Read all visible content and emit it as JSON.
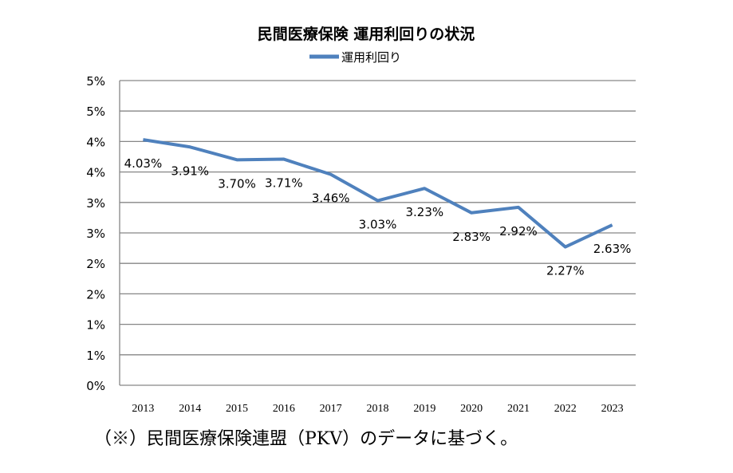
{
  "chart_data": {
    "type": "line",
    "title": "民間医療保険  運用利回りの状況",
    "categories": [
      "2013",
      "2014",
      "2015",
      "2016",
      "2017",
      "2018",
      "2019",
      "2020",
      "2021",
      "2022",
      "2023"
    ],
    "series": [
      {
        "name": "運用利回り",
        "values": [
          4.03,
          3.91,
          3.7,
          3.71,
          3.46,
          3.03,
          3.23,
          2.83,
          2.92,
          2.27,
          2.63
        ],
        "data_labels": [
          "4.03%",
          "3.91%",
          "3.70%",
          "3.71%",
          "3.46%",
          "3.03%",
          "3.23%",
          "2.83%",
          "2.92%",
          "2.27%",
          "2.63%"
        ],
        "color": "#4F81BD"
      }
    ],
    "ylim": [
      0,
      5
    ],
    "yticks": [
      0,
      0.5,
      1,
      1.5,
      2,
      2.5,
      3,
      3.5,
      4,
      4.5,
      5
    ],
    "ytick_labels": [
      "0%",
      "1%",
      "1%",
      "2%",
      "2%",
      "3%",
      "3%",
      "4%",
      "4%",
      "5%",
      "5%"
    ],
    "grid": true,
    "legend": "top-center"
  },
  "footnote": "（※）民間医療保険連盟（PKV）のデータに基づく。"
}
